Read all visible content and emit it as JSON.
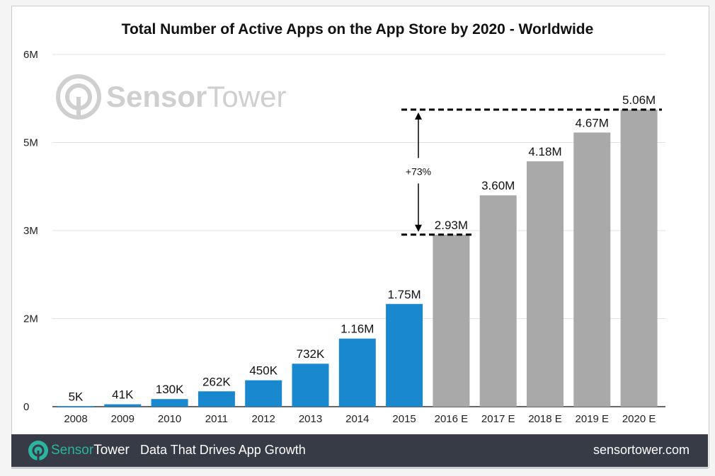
{
  "title": "Total Number of Active Apps on the App Store by 2020 - Worldwide",
  "watermark": {
    "brand_a": "Sensor",
    "brand_b": "Tower"
  },
  "footer": {
    "brand_a": "Sensor",
    "brand_b": "Tower",
    "tagline": "Data That Drives App Growth",
    "url": "sensortower.com"
  },
  "colors": {
    "actual": "#1a88cf",
    "estimate": "#a9a9a9",
    "footer_bg": "#363b45",
    "brand": "#2bb5a0"
  },
  "chart_data": {
    "type": "bar",
    "title": "Total Number of Active Apps on the App Store by 2020 - Worldwide",
    "categories": [
      "2008",
      "2009",
      "2010",
      "2011",
      "2012",
      "2013",
      "2014",
      "2015",
      "2016 E",
      "2017 E",
      "2018 E",
      "2019 E",
      "2020 E"
    ],
    "values": [
      0.005,
      0.041,
      0.13,
      0.262,
      0.45,
      0.732,
      1.16,
      1.75,
      2.93,
      3.6,
      4.18,
      4.67,
      5.06
    ],
    "data_labels": [
      "5K",
      "41K",
      "130K",
      "262K",
      "450K",
      "732K",
      "1.16M",
      "1.75M",
      "2.93M",
      "3.60M",
      "4.18M",
      "4.67M",
      "5.06M"
    ],
    "estimate": [
      false,
      false,
      false,
      false,
      false,
      false,
      false,
      false,
      true,
      true,
      true,
      true,
      true
    ],
    "unit": "millions",
    "ylim": [
      0,
      6
    ],
    "y_ticks": [
      0,
      1.5,
      3,
      4.5,
      6
    ],
    "y_tick_labels": [
      "0",
      "2M",
      "3M",
      "5M",
      "6M"
    ],
    "grid": true,
    "annotation": {
      "text": "+73%",
      "from": 2.93,
      "to": 5.06
    }
  }
}
